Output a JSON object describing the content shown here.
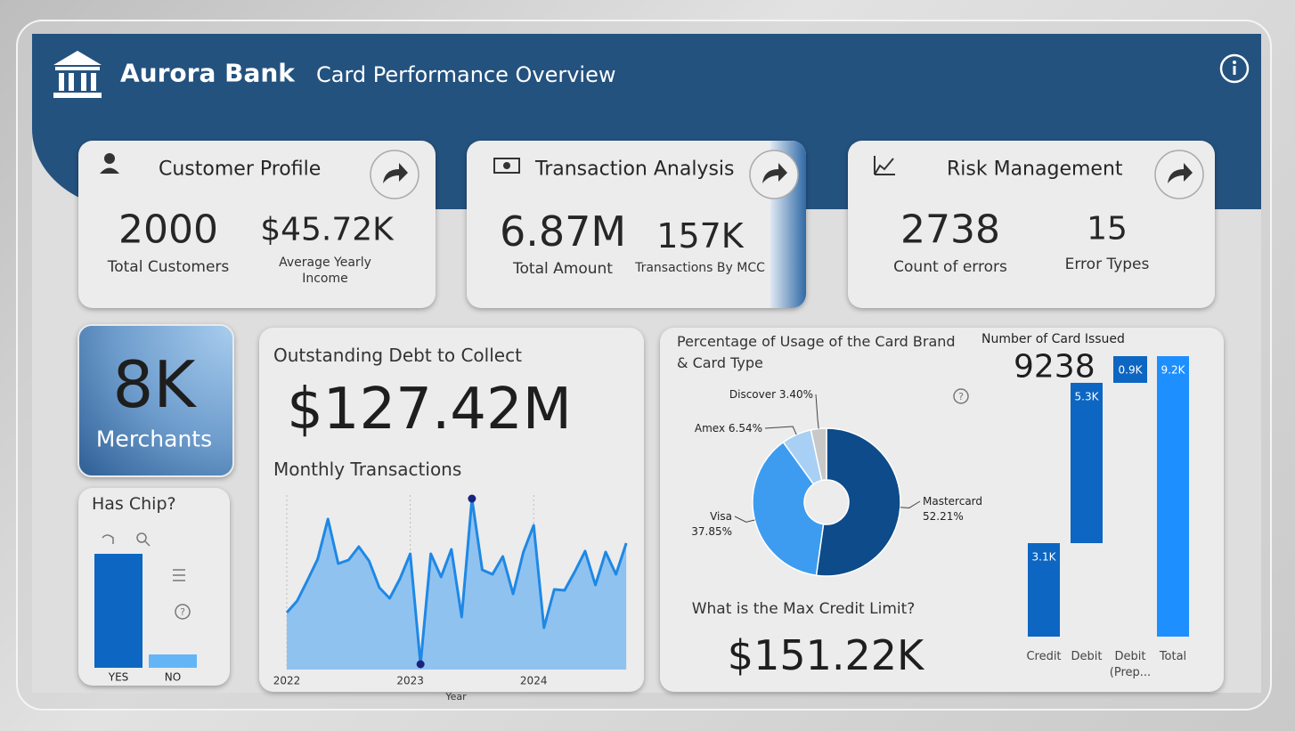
{
  "header": {
    "brand": "Aurora Bank",
    "title": "Card Performance Overview"
  },
  "kpi_cards": [
    {
      "title": "Customer Profile",
      "metrics": [
        {
          "value": "2000",
          "label": "Total Customers"
        },
        {
          "value": "$45.72K",
          "label": "Average Yearly Income"
        }
      ]
    },
    {
      "title": "Transaction Analysis",
      "metrics": [
        {
          "value": "6.87M",
          "label": "Total Amount"
        },
        {
          "value": "157K",
          "label": "Transactions By MCC"
        }
      ]
    },
    {
      "title": "Risk Management",
      "metrics": [
        {
          "value": "2738",
          "label": "Count of errors"
        },
        {
          "value": "15",
          "label": "Error Types"
        }
      ]
    }
  ],
  "merchants": {
    "value": "8K",
    "label": "Merchants"
  },
  "debt": {
    "title": "Outstanding Debt to Collect",
    "value": "$127.42M"
  },
  "credit_limit": {
    "title": "What is the Max Credit Limit?",
    "value": "$151.22K"
  },
  "chart_data": [
    {
      "type": "bar",
      "title": "Has Chip?",
      "categories": [
        "YES",
        "NO"
      ],
      "values": [
        8270,
        968
      ],
      "colors": [
        "#0d66c2",
        "#64b5f6"
      ]
    },
    {
      "type": "area",
      "title": "Monthly Transactions",
      "x_label": "Year",
      "categories": [
        "2022",
        null,
        null,
        null,
        null,
        null,
        null,
        null,
        null,
        null,
        null,
        null,
        "2023",
        null,
        null,
        null,
        null,
        null,
        null,
        null,
        null,
        null,
        null,
        null,
        "2024",
        null,
        null,
        null,
        null,
        null,
        null,
        null,
        null,
        null
      ],
      "values": [
        64,
        77,
        100,
        124,
        169,
        119,
        123,
        138,
        122,
        92,
        80,
        102,
        130,
        6,
        130,
        104,
        135,
        59,
        192,
        112,
        107,
        127,
        85,
        132,
        162,
        47,
        90,
        89,
        110,
        133,
        95,
        132,
        107,
        142
      ],
      "color": "#1e88e5",
      "fill": "#90c2f0",
      "grid": true
    },
    {
      "type": "pie",
      "title": "Percentage of Usage of the Card Brand & Card Type",
      "categories": [
        "Mastercard",
        "Visa",
        "Amex",
        "Discover"
      ],
      "values": [
        52.21,
        37.85,
        6.54,
        3.4
      ],
      "value_labels": [
        "52.21%",
        "37.85%",
        "6.54%",
        "3.40%"
      ],
      "colors": [
        "#0d4b8a",
        "#3d9cf0",
        "#a8d0f5",
        "#c8c8c8"
      ]
    },
    {
      "type": "waterfall",
      "title": "Number of Card Issued",
      "subtitle": "9238",
      "categories": [
        "Credit",
        "Debit",
        "Debit (Prep...",
        "Total"
      ],
      "values": [
        3079,
        5280,
        879,
        9238
      ],
      "value_labels": [
        "3.1K",
        "5.3K",
        "0.9K",
        "9.2K"
      ],
      "is_total": [
        false,
        false,
        false,
        true
      ],
      "colors": [
        "#0d66c2",
        "#0d66c2",
        "#0d66c2",
        "#1e8fff"
      ]
    }
  ]
}
